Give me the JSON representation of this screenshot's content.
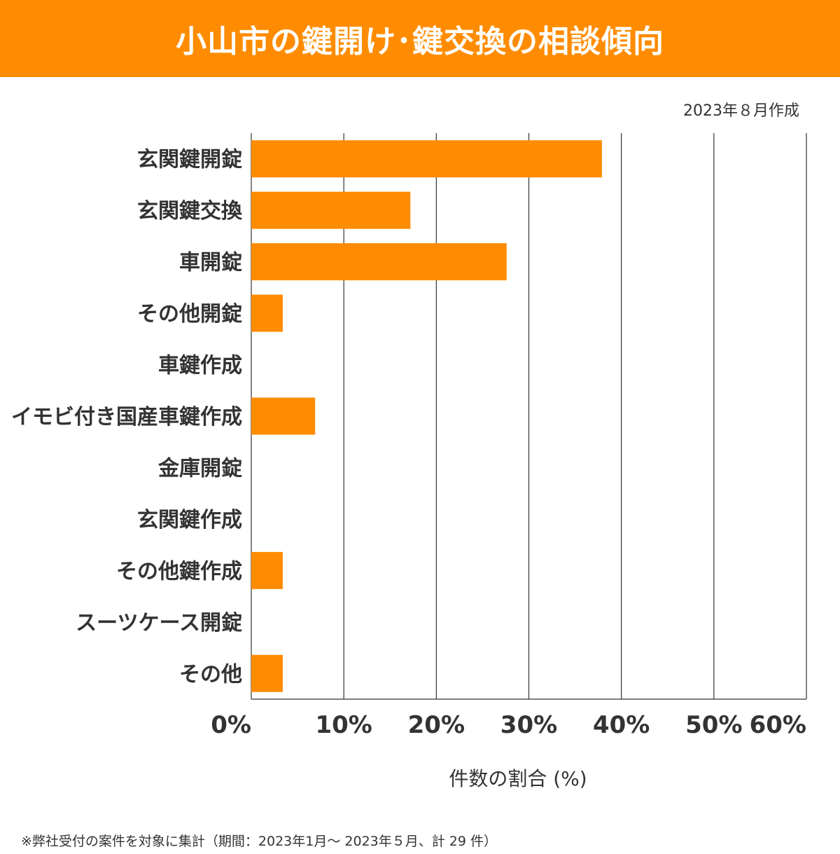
{
  "title": "小山市の鍵開け･鍵交換の相談傾向",
  "date_note": "2023年８月作成",
  "footnote": "※弊社受付の案件を対象に集計（期間：2023年1月～ 2023年５月、計 29 件）",
  "chart_data": {
    "type": "bar",
    "orientation": "horizontal",
    "title": "小山市の鍵開け･鍵交換の相談傾向",
    "xlabel": "件数の割合 (%)",
    "ylabel": "",
    "categories": [
      "玄関鍵開錠",
      "玄関鍵交換",
      "車開錠",
      "その他開錠",
      "車鍵作成",
      "イモビ付き国産車鍵作成",
      "金庫開錠",
      "玄関鍵作成",
      "その他鍵作成",
      "スーツケース開錠",
      "その他"
    ],
    "values": [
      37.9,
      17.2,
      27.6,
      3.4,
      0,
      6.9,
      0,
      0,
      3.4,
      0,
      3.4
    ],
    "xlim": [
      0,
      60
    ],
    "xticks": [
      "0%",
      "10%",
      "20%",
      "30%",
      "40%",
      "50%",
      "60%"
    ],
    "grid": true,
    "bar_color": "#ff8c00"
  }
}
